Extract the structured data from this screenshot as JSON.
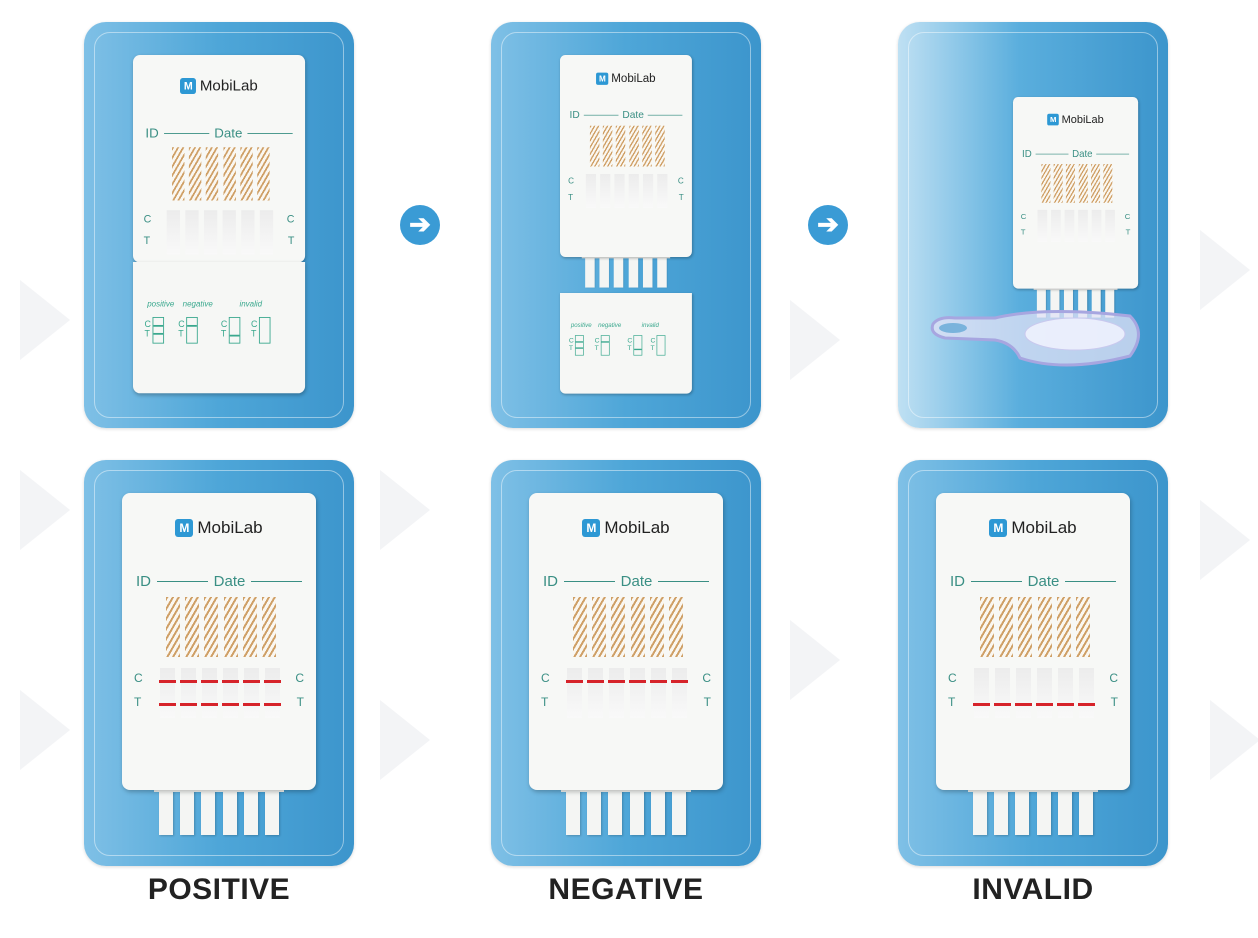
{
  "brand": {
    "name": "MobiLab",
    "mark": "M"
  },
  "card": {
    "id_label": "ID",
    "date_label": "Date",
    "control": "C",
    "test": "T"
  },
  "legend": {
    "positive": "positive",
    "negative": "negative",
    "invalid": "invalid"
  },
  "steps": [
    {
      "name": "cap-removed"
    },
    {
      "name": "cap-detached"
    },
    {
      "name": "dipped-in-cup"
    }
  ],
  "arrow_icon": "arrow-right-icon",
  "results": [
    {
      "label": "POSITIVE",
      "control_line": true,
      "test_line": true
    },
    {
      "label": "NEGATIVE",
      "control_line": true,
      "test_line": false
    },
    {
      "label": "INVALID",
      "control_line": false,
      "test_line": true
    }
  ],
  "colors": {
    "panel": "#4ea6d8",
    "line": "#d6232a",
    "teal": "#3a8f84",
    "arrow": "#3a9bd5"
  }
}
